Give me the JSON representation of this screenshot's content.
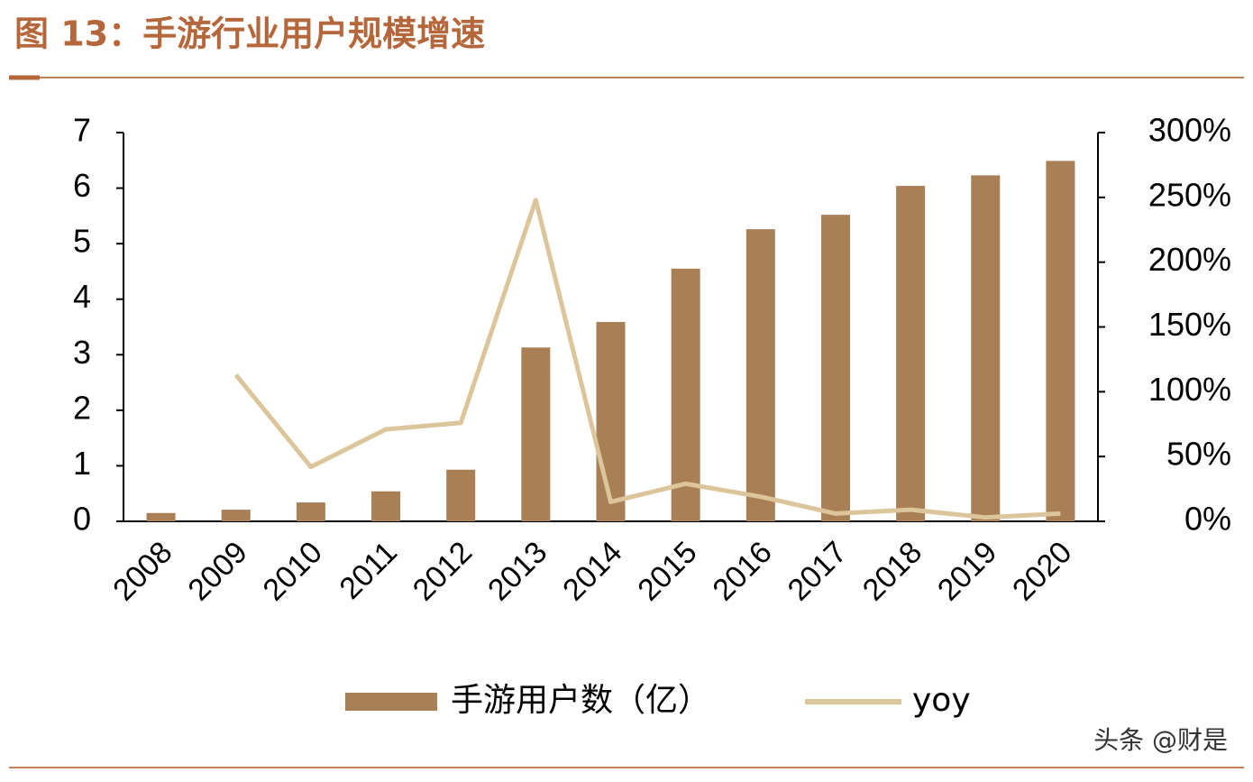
{
  "chart_data": {
    "type": "bar_line",
    "title": "图 13：手游行业用户规模增速",
    "categories": [
      "2008",
      "2009",
      "2010",
      "2011",
      "2012",
      "2013",
      "2014",
      "2015",
      "2016",
      "2017",
      "2018",
      "2019",
      "2020"
    ],
    "series": [
      {
        "name": "手游用户数（亿）",
        "type": "bar",
        "color": "#a97f55",
        "axis": "y",
        "values": [
          0.15,
          0.21,
          0.34,
          0.54,
          0.93,
          3.13,
          3.59,
          4.55,
          5.26,
          5.52,
          6.04,
          6.23,
          6.49
        ]
      },
      {
        "name": "yoy",
        "type": "line",
        "color": "#dcc59a",
        "axis": "y2",
        "values": [
          null,
          113,
          42,
          71,
          76,
          248,
          15,
          29,
          19,
          6,
          9,
          3,
          6
        ]
      }
    ],
    "ylim": [
      0,
      7
    ],
    "yticks": [
      0,
      1,
      2,
      3,
      4,
      5,
      6,
      7
    ],
    "y2lim": [
      0,
      300
    ],
    "y2ticks": [
      {
        "value": 0,
        "label": "0%"
      },
      {
        "value": 50,
        "label": "50%"
      },
      {
        "value": 100,
        "label": "100%"
      },
      {
        "value": 150,
        "label": "150%"
      },
      {
        "value": 200,
        "label": "200%"
      },
      {
        "value": 250,
        "label": "250%"
      },
      {
        "value": 300,
        "label": "300%"
      }
    ],
    "watermark": "头条 @财是"
  }
}
